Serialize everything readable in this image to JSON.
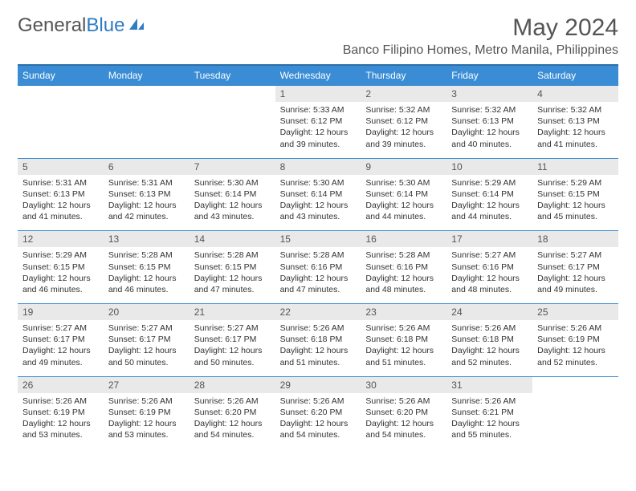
{
  "logo": {
    "text1": "General",
    "text2": "Blue"
  },
  "title": "May 2024",
  "location": "Banco Filipino Homes, Metro Manila, Philippines",
  "weekdays": [
    "Sunday",
    "Monday",
    "Tuesday",
    "Wednesday",
    "Thursday",
    "Friday",
    "Saturday"
  ],
  "colors": {
    "header_bg": "#3a8cd4",
    "header_border": "#2d6fa8",
    "daynum_bg": "#e9e9e9",
    "text": "#333333",
    "title_text": "#555555"
  },
  "weeks": [
    {
      "nums": [
        "",
        "",
        "",
        "1",
        "2",
        "3",
        "4"
      ],
      "content": [
        "",
        "",
        "",
        "Sunrise: 5:33 AM\nSunset: 6:12 PM\nDaylight: 12 hours and 39 minutes.",
        "Sunrise: 5:32 AM\nSunset: 6:12 PM\nDaylight: 12 hours and 39 minutes.",
        "Sunrise: 5:32 AM\nSunset: 6:13 PM\nDaylight: 12 hours and 40 minutes.",
        "Sunrise: 5:32 AM\nSunset: 6:13 PM\nDaylight: 12 hours and 41 minutes."
      ]
    },
    {
      "nums": [
        "5",
        "6",
        "7",
        "8",
        "9",
        "10",
        "11"
      ],
      "content": [
        "Sunrise: 5:31 AM\nSunset: 6:13 PM\nDaylight: 12 hours and 41 minutes.",
        "Sunrise: 5:31 AM\nSunset: 6:13 PM\nDaylight: 12 hours and 42 minutes.",
        "Sunrise: 5:30 AM\nSunset: 6:14 PM\nDaylight: 12 hours and 43 minutes.",
        "Sunrise: 5:30 AM\nSunset: 6:14 PM\nDaylight: 12 hours and 43 minutes.",
        "Sunrise: 5:30 AM\nSunset: 6:14 PM\nDaylight: 12 hours and 44 minutes.",
        "Sunrise: 5:29 AM\nSunset: 6:14 PM\nDaylight: 12 hours and 44 minutes.",
        "Sunrise: 5:29 AM\nSunset: 6:15 PM\nDaylight: 12 hours and 45 minutes."
      ]
    },
    {
      "nums": [
        "12",
        "13",
        "14",
        "15",
        "16",
        "17",
        "18"
      ],
      "content": [
        "Sunrise: 5:29 AM\nSunset: 6:15 PM\nDaylight: 12 hours and 46 minutes.",
        "Sunrise: 5:28 AM\nSunset: 6:15 PM\nDaylight: 12 hours and 46 minutes.",
        "Sunrise: 5:28 AM\nSunset: 6:15 PM\nDaylight: 12 hours and 47 minutes.",
        "Sunrise: 5:28 AM\nSunset: 6:16 PM\nDaylight: 12 hours and 47 minutes.",
        "Sunrise: 5:28 AM\nSunset: 6:16 PM\nDaylight: 12 hours and 48 minutes.",
        "Sunrise: 5:27 AM\nSunset: 6:16 PM\nDaylight: 12 hours and 48 minutes.",
        "Sunrise: 5:27 AM\nSunset: 6:17 PM\nDaylight: 12 hours and 49 minutes."
      ]
    },
    {
      "nums": [
        "19",
        "20",
        "21",
        "22",
        "23",
        "24",
        "25"
      ],
      "content": [
        "Sunrise: 5:27 AM\nSunset: 6:17 PM\nDaylight: 12 hours and 49 minutes.",
        "Sunrise: 5:27 AM\nSunset: 6:17 PM\nDaylight: 12 hours and 50 minutes.",
        "Sunrise: 5:27 AM\nSunset: 6:17 PM\nDaylight: 12 hours and 50 minutes.",
        "Sunrise: 5:26 AM\nSunset: 6:18 PM\nDaylight: 12 hours and 51 minutes.",
        "Sunrise: 5:26 AM\nSunset: 6:18 PM\nDaylight: 12 hours and 51 minutes.",
        "Sunrise: 5:26 AM\nSunset: 6:18 PM\nDaylight: 12 hours and 52 minutes.",
        "Sunrise: 5:26 AM\nSunset: 6:19 PM\nDaylight: 12 hours and 52 minutes."
      ]
    },
    {
      "nums": [
        "26",
        "27",
        "28",
        "29",
        "30",
        "31",
        ""
      ],
      "content": [
        "Sunrise: 5:26 AM\nSunset: 6:19 PM\nDaylight: 12 hours and 53 minutes.",
        "Sunrise: 5:26 AM\nSunset: 6:19 PM\nDaylight: 12 hours and 53 minutes.",
        "Sunrise: 5:26 AM\nSunset: 6:20 PM\nDaylight: 12 hours and 54 minutes.",
        "Sunrise: 5:26 AM\nSunset: 6:20 PM\nDaylight: 12 hours and 54 minutes.",
        "Sunrise: 5:26 AM\nSunset: 6:20 PM\nDaylight: 12 hours and 54 minutes.",
        "Sunrise: 5:26 AM\nSunset: 6:21 PM\nDaylight: 12 hours and 55 minutes.",
        ""
      ]
    }
  ]
}
